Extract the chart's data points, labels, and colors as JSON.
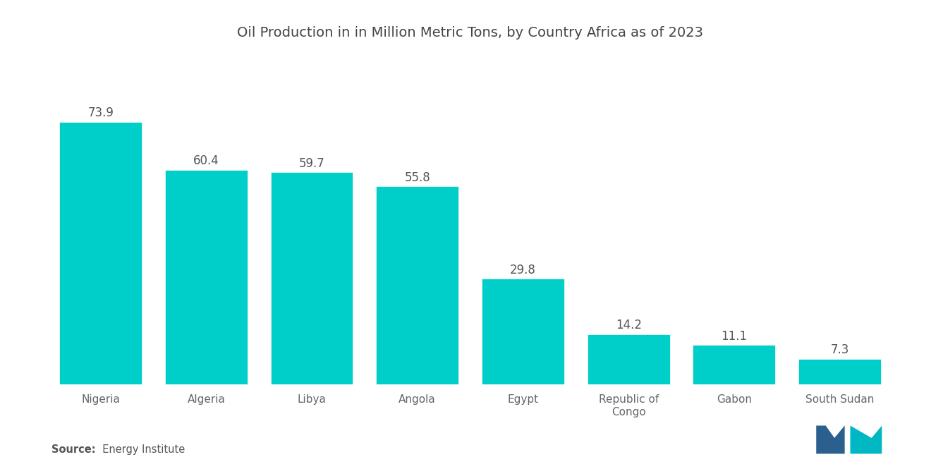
{
  "title": "Oil Production in in Million Metric Tons, by Country Africa as of 2023",
  "categories": [
    "Nigeria",
    "Algeria",
    "Libya",
    "Angola",
    "Egypt",
    "Republic of\nCongo",
    "Gabon",
    "South Sudan"
  ],
  "values": [
    73.9,
    60.4,
    59.7,
    55.8,
    29.8,
    14.2,
    11.1,
    7.3
  ],
  "bar_color": "#00CEC9",
  "bar_edgecolor": "#00CEC9",
  "background_color": "#ffffff",
  "title_fontsize": 14,
  "label_fontsize": 12,
  "tick_fontsize": 11,
  "source_bold": "Source:",
  "source_rest": "  Energy Institute",
  "value_label_color": "#555555",
  "axis_label_color": "#666666",
  "bar_width": 0.78,
  "ylim_factor": 1.25,
  "logo_left_color": "#2B5F8E",
  "logo_right_color": "#00B8C4"
}
